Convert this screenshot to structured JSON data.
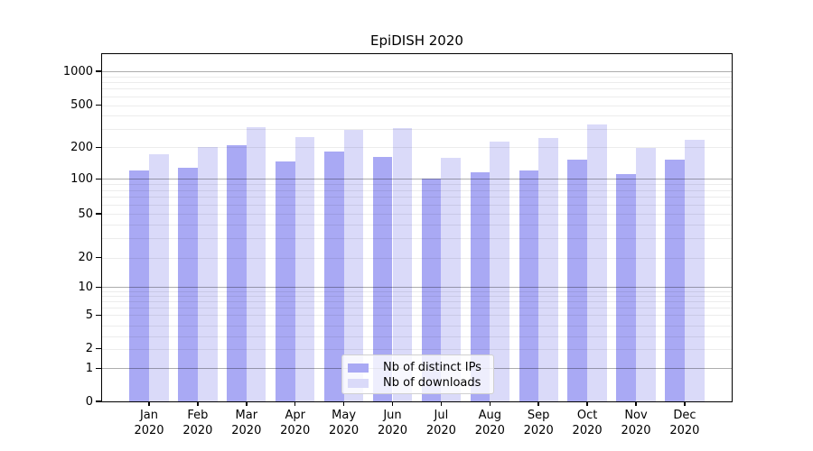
{
  "chart_data": {
    "type": "bar",
    "title": "EpiDISH 2020",
    "categories": [
      "Jan",
      "Feb",
      "Mar",
      "Apr",
      "May",
      "Jun",
      "Jul",
      "Aug",
      "Sep",
      "Oct",
      "Nov",
      "Dec"
    ],
    "category_year": "2020",
    "series": [
      {
        "name": "Nb of distinct IPs",
        "color": "#a9a9f4",
        "values": [
          120,
          128,
          210,
          147,
          182,
          162,
          101,
          115,
          120,
          153,
          112,
          153
        ]
      },
      {
        "name": "Nb of downloads",
        "color": "#dadaf9",
        "values": [
          172,
          200,
          310,
          252,
          290,
          303,
          160,
          228,
          243,
          330,
          198,
          235
        ]
      }
    ],
    "y_axis": {
      "scale": "symlog",
      "tick_values": [
        0,
        1,
        2,
        5,
        10,
        20,
        50,
        100,
        200,
        500,
        1000
      ],
      "tick_labels": [
        "0",
        "1",
        "2",
        "5",
        "10",
        "20",
        "50",
        "100",
        "200",
        "500",
        "1000"
      ],
      "range": [
        0,
        1400
      ]
    },
    "x_axis": {
      "label": ""
    },
    "legend": {
      "position": "lower-center",
      "entries": [
        "Nb of distinct IPs",
        "Nb of downloads"
      ]
    },
    "grid": true,
    "colors": {
      "bar_dark": "#a9a9f4",
      "bar_light": "#dadaf9",
      "grid_major": "#aeaeae",
      "grid_minor": "#ebebeb"
    }
  }
}
